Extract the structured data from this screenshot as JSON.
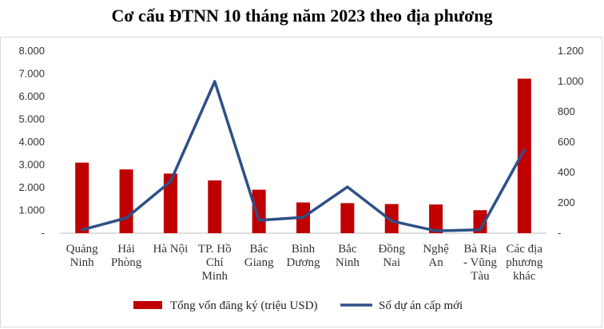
{
  "chart_data": {
    "type": "bar+line",
    "title": "Cơ cấu ĐTNN 10 tháng năm 2023 theo địa phương",
    "categories": [
      [
        "Quảng",
        "Ninh"
      ],
      [
        "Hải",
        "Phòng"
      ],
      [
        "Hà Nội"
      ],
      [
        "TP. Hồ",
        "Chí",
        "Minh"
      ],
      [
        "Bắc",
        "Giang"
      ],
      [
        "Bình",
        "Dương"
      ],
      [
        "Bắc",
        "Ninh"
      ],
      [
        "Đồng",
        "Nai"
      ],
      [
        "Nghệ",
        "An"
      ],
      [
        "Bà Rịa",
        "- Vũng",
        "Tàu"
      ],
      [
        "Các địa",
        "phương",
        "khác"
      ]
    ],
    "series": [
      {
        "name": "Tổng vốn đăng ký (triệu USD)",
        "type": "bar",
        "axis": "left",
        "color": "#c00000",
        "values": [
          3100,
          2800,
          2620,
          2320,
          1910,
          1350,
          1320,
          1280,
          1260,
          1010,
          6790
        ]
      },
      {
        "name": "Số dự án cấp mới",
        "type": "line",
        "axis": "right",
        "color": "#2f4f86",
        "values": [
          22,
          100,
          340,
          1000,
          85,
          105,
          305,
          80,
          15,
          22,
          550
        ]
      }
    ],
    "left_axis": {
      "min": 0,
      "max": 8000,
      "step": 1000,
      "tick_labels": [
        "-",
        "1.000",
        "2.000",
        "3.000",
        "4.000",
        "5.000",
        "6.000",
        "7.000",
        "8.000"
      ]
    },
    "right_axis": {
      "min": 0,
      "max": 1200,
      "step": 200,
      "tick_labels": [
        "-",
        "200",
        "400",
        "600",
        "800",
        "1.000",
        "1.200"
      ]
    },
    "legend_position": "bottom",
    "grid": false
  }
}
